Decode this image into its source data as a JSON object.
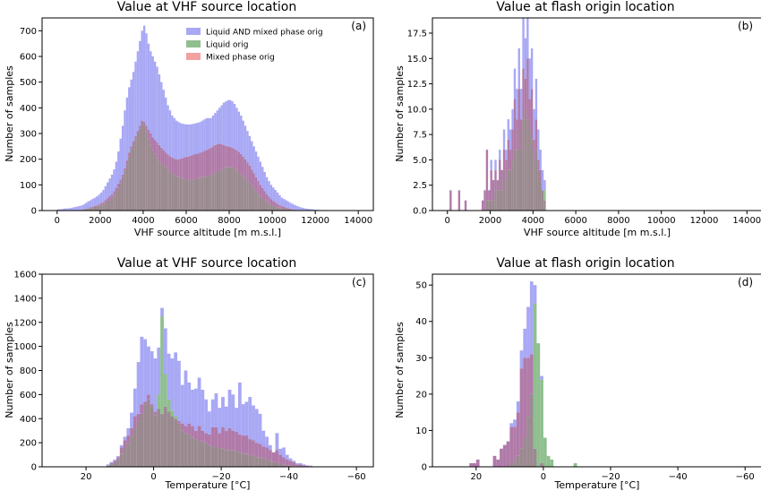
{
  "legend_colors": {
    "all": "#a8a8f5",
    "liquid": "#8fbf8f",
    "mixed": "#f2a0a0",
    "overlap": "#b07aa8",
    "triple": "#9a8a90"
  },
  "chart_data": [
    {
      "id": "a",
      "type": "bar",
      "title": "Value at VHF source location",
      "panel_label": "(a)",
      "xlabel": "VHF source altitude [m m.s.l.]",
      "ylabel": "Number of samples",
      "xlim": [
        -700,
        14700
      ],
      "ylim": [
        0,
        750
      ],
      "xticks": [
        0,
        2000,
        4000,
        6000,
        8000,
        10000,
        12000,
        14000
      ],
      "xtick_labels": [
        "0",
        "2000",
        "4000",
        "6000",
        "8000",
        "10000",
        "12000",
        "14000"
      ],
      "yticks": [
        0,
        100,
        200,
        300,
        400,
        500,
        600,
        700
      ],
      "ytick_labels": [
        "0",
        "100",
        "200",
        "300",
        "400",
        "500",
        "600",
        "700"
      ],
      "legend": {
        "placement": "top-right",
        "entries": [
          "Liquid AND mixed phase orig",
          "Liquid orig",
          "Mixed phase orig"
        ]
      },
      "bins": {
        "start": 0,
        "width": 100,
        "all": [
          5,
          5,
          6,
          8,
          8,
          9,
          10,
          12,
          14,
          16,
          18,
          20,
          24,
          30,
          36,
          40,
          45,
          50,
          55,
          62,
          70,
          80,
          95,
          110,
          125,
          140,
          160,
          190,
          230,
          280,
          330,
          390,
          440,
          480,
          510,
          540,
          580,
          620,
          660,
          700,
          720,
          690,
          650,
          620,
          600,
          580,
          560,
          530,
          500,
          470,
          440,
          410,
          390,
          370,
          360,
          350,
          345,
          340,
          338,
          336,
          335,
          335,
          336,
          338,
          340,
          342,
          345,
          350,
          355,
          360,
          360,
          360,
          370,
          380,
          390,
          400,
          410,
          420,
          425,
          430,
          430,
          425,
          415,
          400,
          385,
          370,
          350,
          330,
          310,
          290,
          270,
          250,
          230,
          210,
          190,
          170,
          150,
          130,
          115,
          100,
          90,
          80,
          70,
          60,
          50,
          45,
          40,
          35,
          30,
          26,
          22,
          18,
          15,
          12,
          10,
          8,
          7,
          6,
          5,
          4,
          3,
          3,
          2,
          2,
          2,
          1,
          1,
          1,
          0,
          0,
          0,
          0,
          0,
          0,
          0,
          0,
          0,
          0,
          0,
          0
        ],
        "liquid": [
          0,
          0,
          0,
          0,
          0,
          0,
          0,
          0,
          1,
          1,
          2,
          3,
          4,
          6,
          8,
          10,
          12,
          14,
          16,
          18,
          20,
          25,
          30,
          35,
          40,
          50,
          60,
          75,
          90,
          105,
          130,
          155,
          180,
          210,
          240,
          260,
          280,
          300,
          320,
          340,
          335,
          310,
          280,
          255,
          235,
          220,
          205,
          195,
          185,
          175,
          168,
          160,
          152,
          145,
          140,
          135,
          130,
          128,
          126,
          124,
          122,
          120,
          120,
          122,
          124,
          126,
          128,
          130,
          132,
          134,
          136,
          138,
          140,
          145,
          150,
          155,
          160,
          165,
          168,
          170,
          170,
          168,
          164,
          158,
          150,
          142,
          135,
          125,
          115,
          105,
          95,
          85,
          75,
          65,
          55,
          47,
          40,
          34,
          28,
          23,
          19,
          16,
          13,
          11,
          9,
          7,
          6,
          5,
          4,
          3,
          2,
          2,
          1,
          1,
          1,
          0,
          0,
          0,
          0,
          0,
          0,
          0,
          0,
          0,
          0,
          0,
          0,
          0,
          0,
          0,
          0,
          0,
          0,
          0,
          0,
          0,
          0,
          0,
          0,
          0,
          0
        ],
        "mixed": [
          0,
          0,
          0,
          0,
          0,
          0,
          0,
          0,
          1,
          1,
          2,
          3,
          5,
          7,
          10,
          13,
          15,
          18,
          20,
          24,
          28,
          34,
          40,
          48,
          56,
          64,
          75,
          90,
          105,
          120,
          140,
          165,
          195,
          225,
          250,
          270,
          290,
          310,
          330,
          350,
          345,
          330,
          315,
          300,
          285,
          275,
          265,
          255,
          245,
          235,
          225,
          218,
          212,
          206,
          202,
          200,
          200,
          202,
          205,
          208,
          210,
          212,
          215,
          218,
          220,
          222,
          225,
          228,
          232,
          236,
          240,
          245,
          250,
          255,
          258,
          260,
          258,
          255,
          252,
          250,
          248,
          245,
          240,
          235,
          228,
          220,
          210,
          200,
          188,
          175,
          160,
          145,
          130,
          115,
          100,
          88,
          75,
          64,
          54,
          45,
          38,
          32,
          26,
          21,
          17,
          14,
          11,
          9,
          7,
          5,
          4,
          3,
          2,
          2,
          1,
          1,
          1,
          0,
          0,
          0,
          0,
          0,
          0,
          0,
          0,
          0,
          0,
          0,
          0,
          0,
          0,
          0,
          0,
          0,
          0,
          0,
          0,
          0,
          0,
          0
        ]
      }
    },
    {
      "id": "b",
      "type": "bar",
      "title": "Value at flash origin location",
      "panel_label": "(b)",
      "xlabel": "VHF source altitude [m m.s.l.]",
      "ylabel": "Number of samples",
      "xlim": [
        -700,
        14700
      ],
      "ylim": [
        0,
        19
      ],
      "xticks": [
        0,
        2000,
        4000,
        6000,
        8000,
        10000,
        12000,
        14000
      ],
      "xtick_labels": [
        "0",
        "2000",
        "4000",
        "6000",
        "8000",
        "10000",
        "12000",
        "14000"
      ],
      "yticks": [
        0,
        2.5,
        5,
        7.5,
        10,
        12.5,
        15,
        17.5
      ],
      "ytick_labels": [
        "0.0",
        "2.5",
        "5.0",
        "7.5",
        "10.0",
        "12.5",
        "15.0",
        "17.5"
      ],
      "bins": {
        "start": 0,
        "width": 100,
        "all": [
          0,
          2,
          0,
          0,
          0,
          2,
          0,
          0,
          1,
          0,
          0,
          0,
          0,
          0,
          0,
          0,
          1,
          2,
          6,
          2,
          5,
          3,
          5,
          3,
          6,
          4,
          8,
          6,
          9,
          8,
          10,
          14,
          12,
          16,
          12,
          19,
          17,
          19,
          15,
          16,
          10,
          13,
          8,
          6,
          4,
          3,
          0,
          0,
          0,
          0
        ],
        "liquid": [
          0,
          0,
          0,
          0,
          0,
          0,
          0,
          0,
          0,
          0,
          0,
          0,
          0,
          0,
          0,
          0,
          0,
          0,
          1,
          1,
          1,
          1,
          2,
          2,
          3,
          2,
          4,
          3,
          4,
          4,
          5,
          6,
          6,
          8,
          6,
          9,
          10,
          9,
          8,
          7,
          5,
          6,
          4,
          3,
          2,
          2,
          0,
          0,
          0,
          0
        ],
        "mixed": [
          0,
          2,
          0,
          0,
          0,
          2,
          0,
          0,
          1,
          0,
          0,
          0,
          0,
          0,
          0,
          0,
          1,
          2,
          6,
          2,
          4,
          3,
          4,
          3,
          5,
          4,
          6,
          5,
          7,
          6,
          8,
          11,
          9,
          12,
          9,
          14,
          13,
          15,
          11,
          12,
          7,
          9,
          5,
          4,
          2,
          1,
          0,
          0,
          0,
          0
        ]
      }
    },
    {
      "id": "c",
      "type": "bar",
      "title": "Value at VHF source location",
      "panel_label": "(c)",
      "xlabel": "Temperature [°C]",
      "ylabel": "Number of samples",
      "xlim": [
        33,
        -65
      ],
      "ylim": [
        0,
        1600
      ],
      "xticks": [
        20,
        0,
        -20,
        -40,
        -60
      ],
      "xtick_labels": [
        "20",
        "0",
        "−20",
        "−40",
        "−60"
      ],
      "yticks": [
        0,
        200,
        400,
        600,
        800,
        1000,
        1200,
        1400,
        1600
      ],
      "ytick_labels": [
        "0",
        "200",
        "400",
        "600",
        "800",
        "1000",
        "1200",
        "1400",
        "1600"
      ],
      "bins": {
        "start": 14,
        "width": -1,
        "all": [
          20,
          40,
          60,
          90,
          180,
          250,
          320,
          450,
          650,
          870,
          1080,
          1060,
          1000,
          960,
          900,
          990,
          1320,
          1150,
          940,
          900,
          950,
          880,
          680,
          800,
          700,
          640,
          650,
          740,
          640,
          560,
          460,
          560,
          610,
          490,
          580,
          500,
          640,
          600,
          490,
          700,
          520,
          540,
          580,
          510,
          480,
          440,
          300,
          250,
          180,
          110,
          280,
          150,
          160,
          100,
          70,
          50,
          30,
          30,
          20,
          10,
          10
        ],
        "liquid": [
          10,
          20,
          30,
          60,
          110,
          160,
          200,
          260,
          320,
          380,
          440,
          520,
          560,
          500,
          430,
          600,
          1250,
          770,
          560,
          470,
          420,
          360,
          300,
          280,
          270,
          240,
          230,
          220,
          210,
          200,
          180,
          170,
          160,
          160,
          150,
          140,
          140,
          140,
          130,
          120,
          110,
          110,
          100,
          90,
          80,
          80,
          70,
          60,
          50,
          40,
          30,
          30,
          20,
          10,
          10,
          5,
          5,
          0,
          0,
          0,
          0
        ],
        "mixed": [
          10,
          30,
          50,
          80,
          160,
          220,
          260,
          320,
          420,
          440,
          520,
          540,
          600,
          520,
          460,
          480,
          440,
          500,
          460,
          420,
          400,
          380,
          360,
          340,
          360,
          340,
          300,
          340,
          300,
          280,
          270,
          330,
          330,
          280,
          330,
          300,
          320,
          300,
          290,
          270,
          260,
          260,
          230,
          220,
          200,
          190,
          170,
          160,
          140,
          120,
          140,
          100,
          80,
          60,
          50,
          40,
          20,
          20,
          10,
          10,
          5
        ]
      }
    },
    {
      "id": "d",
      "type": "bar",
      "title": "Value at flash origin location",
      "panel_label": "(d)",
      "xlabel": "Temperature [°C]",
      "ylabel": "Number of samples",
      "xlim": [
        33,
        -65
      ],
      "ylim": [
        0,
        53
      ],
      "xticks": [
        20,
        0,
        -20,
        -40,
        -60
      ],
      "xtick_labels": [
        "20",
        "0",
        "−20",
        "−40",
        "−60"
      ],
      "yticks": [
        0,
        10,
        20,
        30,
        40,
        50
      ],
      "ytick_labels": [
        "0",
        "10",
        "20",
        "30",
        "40",
        "50"
      ],
      "bins": {
        "start": 22,
        "width": -1,
        "all": [
          1,
          1,
          2,
          0,
          0,
          0,
          0,
          3,
          2,
          5,
          6,
          7,
          12,
          13,
          18,
          32,
          38,
          44,
          51,
          50,
          34,
          25,
          8,
          3,
          2,
          0,
          0,
          0,
          0,
          0,
          0,
          1,
          0
        ],
        "liquid": [
          0,
          0,
          0,
          0,
          0,
          0,
          0,
          0,
          0,
          0,
          0,
          0,
          1,
          2,
          3,
          5,
          8,
          14,
          20,
          45,
          34,
          24,
          8,
          3,
          2,
          0,
          0,
          0,
          0,
          0,
          0,
          1,
          0
        ],
        "mixed": [
          1,
          1,
          2,
          0,
          0,
          0,
          0,
          3,
          2,
          5,
          6,
          7,
          11,
          11,
          15,
          27,
          30,
          30,
          31,
          5,
          0,
          1,
          0,
          0,
          0,
          0,
          0,
          0,
          0,
          0,
          0,
          0,
          0
        ]
      }
    }
  ]
}
